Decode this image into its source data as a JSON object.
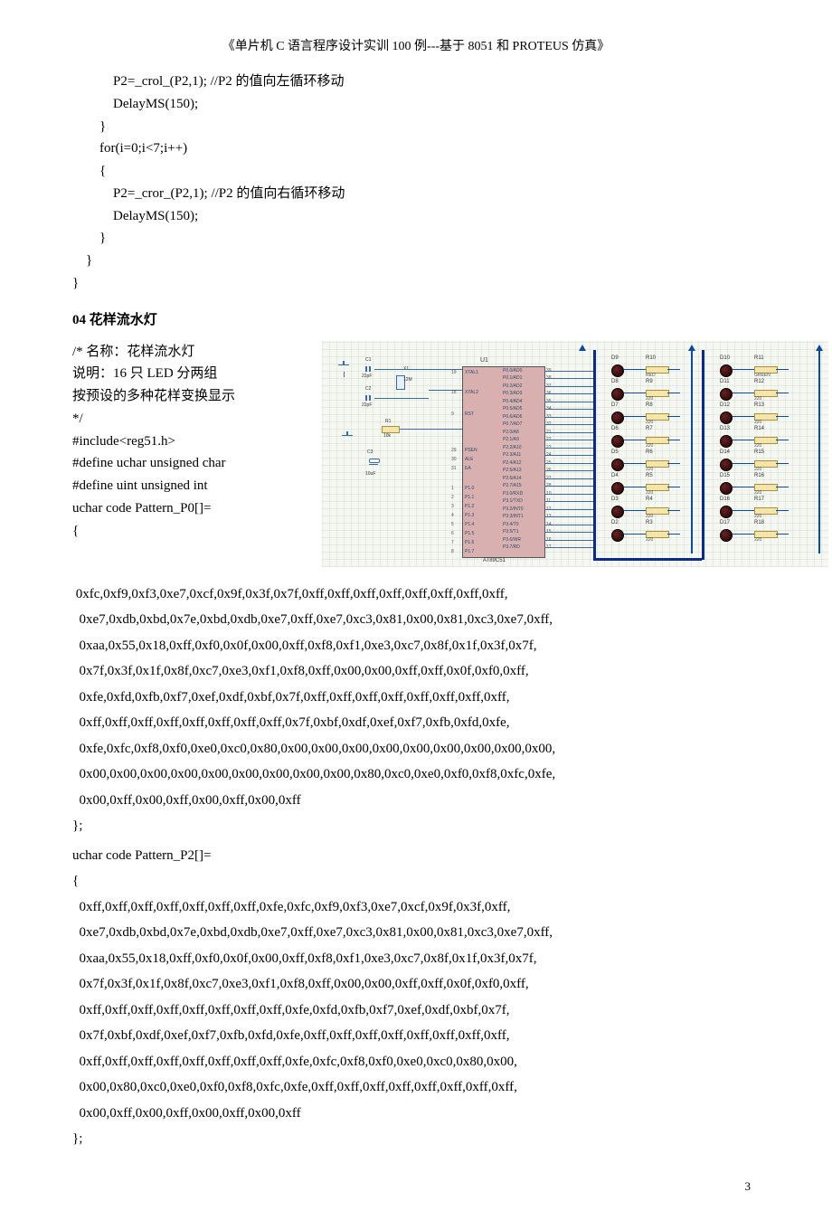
{
  "header": "《单片机 C 语言程序设计实训 100 例---基于 8051 和 PROTEUS 仿真》",
  "code_top": "            P2=_crol_(P2,1); //P2 的值向左循环移动\n            DelayMS(150);\n        }\n        for(i=0;i<7;i++)\n        {\n            P2=_cror_(P2,1); //P2 的值向右循环移动\n            DelayMS(150);\n        }\n    }\n}",
  "section_title": "04   花样流水灯",
  "intro_lines": {
    "l1": "/*     名称：花样流水灯",
    "l2": "       说明：16 只 LED 分两组",
    "l3": "按预设的多种花样变换显示",
    "l4": "*/",
    "l5": "#include<reg51.h>",
    "l6": "#define uchar unsigned char",
    "l7": "#define uint unsigned int",
    "l8": "uchar code Pattern_P0[]=",
    "l9": "{"
  },
  "hex_p0": " 0xfc,0xf9,0xf3,0xe7,0xcf,0x9f,0x3f,0x7f,0xff,0xff,0xff,0xff,0xff,0xff,0xff,0xff,\n  0xe7,0xdb,0xbd,0x7e,0xbd,0xdb,0xe7,0xff,0xe7,0xc3,0x81,0x00,0x81,0xc3,0xe7,0xff,\n  0xaa,0x55,0x18,0xff,0xf0,0x0f,0x00,0xff,0xf8,0xf1,0xe3,0xc7,0x8f,0x1f,0x3f,0x7f,\n  0x7f,0x3f,0x1f,0x8f,0xc7,0xe3,0xf1,0xf8,0xff,0x00,0x00,0xff,0xff,0x0f,0xf0,0xff,\n  0xfe,0xfd,0xfb,0xf7,0xef,0xdf,0xbf,0x7f,0xff,0xff,0xff,0xff,0xff,0xff,0xff,0xff,\n  0xff,0xff,0xff,0xff,0xff,0xff,0xff,0xff,0x7f,0xbf,0xdf,0xef,0xf7,0xfb,0xfd,0xfe,\n  0xfe,0xfc,0xf8,0xf0,0xe0,0xc0,0x80,0x00,0x00,0x00,0x00,0x00,0x00,0x00,0x00,0x00,\n  0x00,0x00,0x00,0x00,0x00,0x00,0x00,0x00,0x00,0x80,0xc0,0xe0,0xf0,0xf8,0xfc,0xfe,\n  0x00,0xff,0x00,0xff,0x00,0xff,0x00,0xff\n};",
  "p2_decl": "uchar code Pattern_P2[]=\n{",
  "hex_p2": "  0xff,0xff,0xff,0xff,0xff,0xff,0xff,0xfe,0xfc,0xf9,0xf3,0xe7,0xcf,0x9f,0x3f,0xff,\n  0xe7,0xdb,0xbd,0x7e,0xbd,0xdb,0xe7,0xff,0xe7,0xc3,0x81,0x00,0x81,0xc3,0xe7,0xff,\n  0xaa,0x55,0x18,0xff,0xf0,0x0f,0x00,0xff,0xf8,0xf1,0xe3,0xc7,0x8f,0x1f,0x3f,0x7f,\n  0x7f,0x3f,0x1f,0x8f,0xc7,0xe3,0xf1,0xf8,0xff,0x00,0x00,0xff,0xff,0x0f,0xf0,0xff,\n  0xff,0xff,0xff,0xff,0xff,0xff,0xff,0xff,0xfe,0xfd,0xfb,0xf7,0xef,0xdf,0xbf,0x7f,\n  0x7f,0xbf,0xdf,0xef,0xf7,0xfb,0xfd,0xfe,0xff,0xff,0xff,0xff,0xff,0xff,0xff,0xff,\n  0xff,0xff,0xff,0xff,0xff,0xff,0xff,0xff,0xfe,0xfc,0xf8,0xf0,0xe0,0xc0,0x80,0x00,\n  0x00,0x80,0xc0,0xe0,0xf0,0xf8,0xfc,0xfe,0xff,0xff,0xff,0xff,0xff,0xff,0xff,0xff,\n  0x00,0xff,0x00,0xff,0x00,0xff,0x00,0xff\n};",
  "page_num": "3",
  "schematic": {
    "mcu_name": "AT89C51",
    "u1": "U1",
    "left_pins": [
      "XTAL1",
      "XTAL2",
      "RST",
      "PSEN",
      "ALE",
      "EA",
      "P1.0",
      "P1.1",
      "P1.2",
      "P1.3",
      "P1.4",
      "P1.5",
      "P1.6",
      "P1.7"
    ],
    "left_nums": [
      "19",
      "18",
      "9",
      "29",
      "30",
      "31",
      "1",
      "2",
      "3",
      "4",
      "5",
      "6",
      "7",
      "8"
    ],
    "right_pins": [
      "P0.0/AD0",
      "P0.1/AD1",
      "P0.2/AD2",
      "P0.3/AD3",
      "P0.4/AD4",
      "P0.5/AD5",
      "P0.6/AD6",
      "P0.7/AD7",
      "P2.0/A8",
      "P2.1/A9",
      "P2.2/A10",
      "P2.3/A11",
      "P2.4/A12",
      "P2.5/A13",
      "P2.6/A14",
      "P2.7/A15",
      "P3.0/RXD",
      "P3.1/TXD",
      "P3.2/INT0",
      "P3.3/INT1",
      "P3.4/T0",
      "P3.5/T1",
      "P3.6/WR",
      "P3.7/RD"
    ],
    "right_nums": [
      "39",
      "38",
      "37",
      "36",
      "35",
      "34",
      "33",
      "32",
      "21",
      "22",
      "23",
      "24",
      "25",
      "26",
      "27",
      "28",
      "10",
      "11",
      "12",
      "13",
      "14",
      "15",
      "16",
      "17"
    ],
    "comps": {
      "c1": "C1",
      "c1v": "22pF",
      "c2": "C2",
      "c2v": "22pF",
      "c3": "C3",
      "c3v": "10uF",
      "x1": "X1",
      "x1v": "12M",
      "r1": "R1",
      "r1v": "10k"
    },
    "led_left": [
      {
        "d": "D9",
        "r": "R10",
        "v": "RED"
      },
      {
        "d": "D8",
        "r": "R9",
        "v": "220"
      },
      {
        "d": "D7",
        "r": "R8",
        "v": "220"
      },
      {
        "d": "D6",
        "r": "R7",
        "v": "220"
      },
      {
        "d": "D5",
        "r": "R6",
        "v": "220"
      },
      {
        "d": "D4",
        "r": "R5",
        "v": "220"
      },
      {
        "d": "D3",
        "r": "R4",
        "v": "220"
      },
      {
        "d": "D2",
        "r": "R3",
        "v": "220"
      }
    ],
    "led_right": [
      {
        "d": "D10",
        "r": "R11",
        "v": "GREEN"
      },
      {
        "d": "D11",
        "r": "R12",
        "v": "220"
      },
      {
        "d": "D12",
        "r": "R13",
        "v": "220"
      },
      {
        "d": "D13",
        "r": "R14",
        "v": "220"
      },
      {
        "d": "D14",
        "r": "R15",
        "v": "220"
      },
      {
        "d": "D15",
        "r": "R16",
        "v": "220"
      },
      {
        "d": "D16",
        "r": "R17",
        "v": "220"
      },
      {
        "d": "D17",
        "r": "R18",
        "v": "220"
      }
    ]
  }
}
